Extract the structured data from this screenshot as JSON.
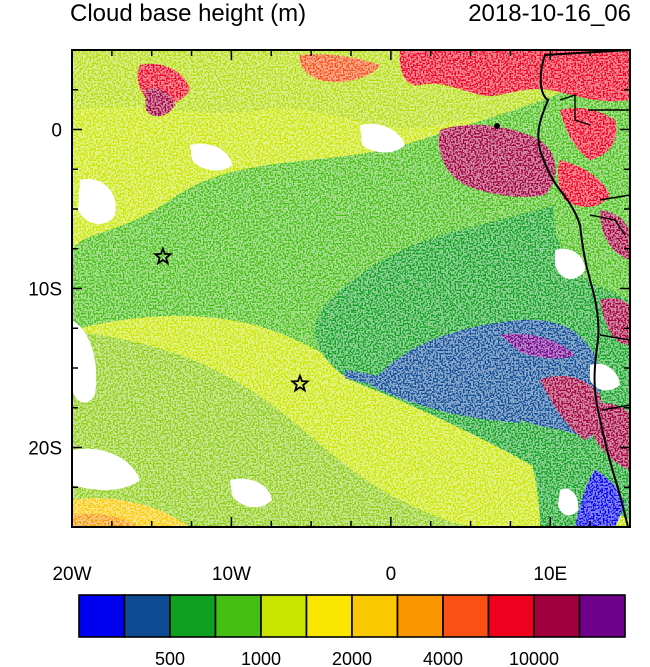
{
  "title": "Cloud base height (m)",
  "datetime": "2018-10-16_06",
  "map": {
    "lon_range": [
      -20,
      15
    ],
    "lat_range": [
      -25,
      5
    ],
    "x_ticks": [
      {
        "lon": -20,
        "label": "20W"
      },
      {
        "lon": -10,
        "label": "10W"
      },
      {
        "lon": 0,
        "label": "0"
      },
      {
        "lon": 10,
        "label": "10E"
      }
    ],
    "y_ticks": [
      {
        "lat": 0,
        "label": "0"
      },
      {
        "lat": -10,
        "label": "10S"
      },
      {
        "lat": -20,
        "label": "20S"
      }
    ],
    "stars": [
      {
        "lon": -14.3,
        "lat": -8.0
      },
      {
        "lon": -5.7,
        "lat": -16.0
      }
    ]
  },
  "colorbar": {
    "colors": [
      "#0000f0",
      "#0d4c95",
      "#10a020",
      "#46be14",
      "#c8e600",
      "#fae600",
      "#fac800",
      "#fa9600",
      "#fa5014",
      "#f0001e",
      "#a0003c",
      "#6e008c"
    ],
    "labels": [
      {
        "boundary": 2,
        "text": "500"
      },
      {
        "boundary": 4,
        "text": "1000"
      },
      {
        "boundary": 6,
        "text": "2000"
      },
      {
        "boundary": 8,
        "text": "4000"
      },
      {
        "boundary": 10,
        "text": "10000"
      }
    ]
  }
}
